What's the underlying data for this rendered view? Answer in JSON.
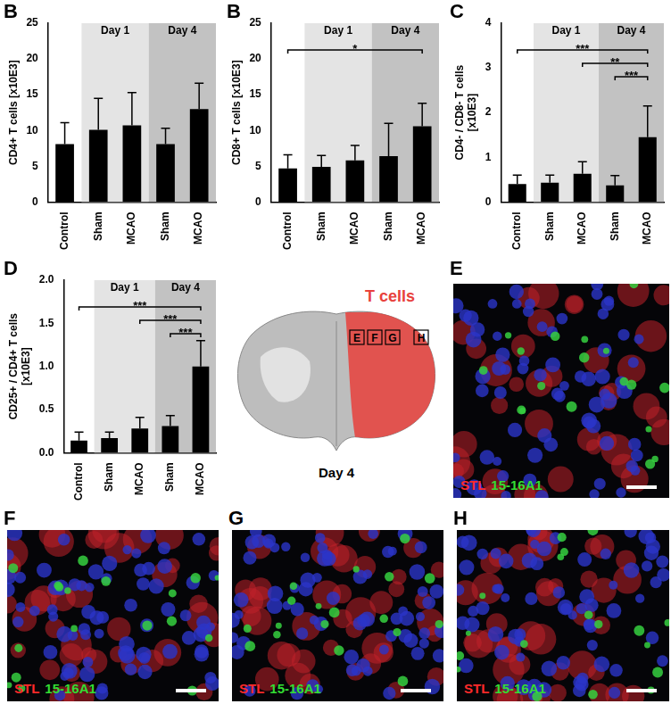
{
  "chart_data": [
    {
      "type": "bar",
      "panel": "B",
      "y_label": "CD4+ T cells [x10E3]",
      "categories": [
        "Control",
        "Sham",
        "MCAO",
        "Sham",
        "MCAO"
      ],
      "values": [
        8.1,
        10.1,
        10.7,
        8.1,
        13.0
      ],
      "errors": [
        3.0,
        4.4,
        4.6,
        2.2,
        3.6
      ],
      "color": "#000000",
      "ylim": [
        0,
        25
      ],
      "yticks": [
        0,
        5,
        10,
        15,
        20,
        25
      ],
      "groups": [
        {
          "label": "Day 1",
          "from": 1,
          "to": 2,
          "color": "#e4e4e4"
        },
        {
          "label": "Day 4",
          "from": 3,
          "to": 4,
          "color": "#c2c2c2"
        }
      ]
    },
    {
      "type": "bar",
      "panel": "B",
      "y_label": "CD8+ T cells [x10E3]",
      "categories": [
        "Control",
        "Sham",
        "MCAO",
        "Sham",
        "MCAO"
      ],
      "values": [
        4.7,
        4.9,
        5.8,
        6.4,
        10.6
      ],
      "errors": [
        1.9,
        1.6,
        2.1,
        4.6,
        3.2
      ],
      "color": "#000000",
      "ylim": [
        0,
        25
      ],
      "yticks": [
        0,
        5,
        10,
        15,
        20,
        25
      ],
      "groups": [
        {
          "label": "Day 1",
          "from": 1,
          "to": 2,
          "color": "#e4e4e4"
        },
        {
          "label": "Day 4",
          "from": 3,
          "to": 4,
          "color": "#c2c2c2"
        }
      ],
      "significance": [
        {
          "from": 0,
          "to": 4,
          "label": "*"
        }
      ]
    },
    {
      "type": "bar",
      "panel": "C",
      "y_label": [
        "CD4- / CD8- T cells",
        "[x10E3]"
      ],
      "categories": [
        "Control",
        "Sham",
        "MCAO",
        "Sham",
        "MCAO"
      ],
      "values": [
        0.4,
        0.43,
        0.63,
        0.37,
        1.45
      ],
      "errors": [
        0.2,
        0.17,
        0.27,
        0.22,
        0.7
      ],
      "color": "#000000",
      "ylim": [
        0,
        4
      ],
      "yticks": [
        0,
        1,
        2,
        3,
        4
      ],
      "groups": [
        {
          "label": "Day 1",
          "from": 1,
          "to": 2,
          "color": "#e4e4e4"
        },
        {
          "label": "Day 4",
          "from": 3,
          "to": 4,
          "color": "#c2c2c2"
        }
      ],
      "significance": [
        {
          "from": 0,
          "to": 4,
          "label": "***"
        },
        {
          "from": 2,
          "to": 4,
          "label": "**"
        },
        {
          "from": 3,
          "to": 4,
          "label": "***"
        }
      ]
    },
    {
      "type": "bar",
      "panel": "D",
      "y_label": [
        "CD25+ / CD4+ T cells",
        "[x10E3]"
      ],
      "categories": [
        "Control",
        "Sham",
        "MCAO",
        "Sham",
        "MCAO"
      ],
      "values": [
        0.14,
        0.17,
        0.28,
        0.31,
        1.0
      ],
      "errors": [
        0.1,
        0.07,
        0.13,
        0.12,
        0.3
      ],
      "color": "#000000",
      "ylim": [
        0,
        2
      ],
      "yticks": [
        {
          "value": 0,
          "label": "0.0"
        },
        {
          "value": 0.5,
          "label": "0.5"
        },
        {
          "value": 1,
          "label": "1.0"
        },
        {
          "value": 1.5,
          "label": "1.5"
        },
        {
          "value": 2,
          "label": "2.0"
        }
      ],
      "groups": [
        {
          "label": "Day 1",
          "from": 1,
          "to": 2,
          "color": "#e4e4e4"
        },
        {
          "label": "Day 4",
          "from": 3,
          "to": 4,
          "color": "#c2c2c2"
        }
      ],
      "significance": [
        {
          "from": 0,
          "to": 4,
          "label": "***"
        },
        {
          "from": 2,
          "to": 4,
          "label": "***"
        },
        {
          "from": 3,
          "to": 4,
          "label": "***"
        }
      ]
    }
  ],
  "schematic": {
    "title": "T cells",
    "subtitle": "Day 4",
    "boxes": [
      "E",
      "F",
      "G",
      "H"
    ],
    "color": "#e8413c"
  },
  "images": [
    {
      "panel": "E",
      "stains": [
        {
          "text": "STL",
          "color": "#ff2a2a"
        },
        {
          "text": "15-16A1",
          "color": "#33dd33"
        }
      ]
    },
    {
      "panel": "F",
      "stains": [
        {
          "text": "STL",
          "color": "#ff2a2a"
        },
        {
          "text": "15-16A1",
          "color": "#33dd33"
        }
      ]
    },
    {
      "panel": "G",
      "stains": [
        {
          "text": "STL",
          "color": "#ff2a2a"
        },
        {
          "text": "15-16A1",
          "color": "#33dd33"
        }
      ]
    },
    {
      "panel": "H",
      "stains": [
        {
          "text": "STL",
          "color": "#ff2a2a"
        },
        {
          "text": "15-16A1",
          "color": "#33dd33"
        }
      ]
    }
  ]
}
